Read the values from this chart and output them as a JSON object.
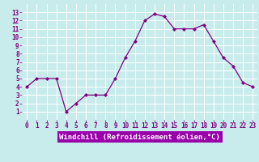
{
  "x": [
    0,
    1,
    2,
    3,
    4,
    5,
    6,
    7,
    8,
    9,
    10,
    11,
    12,
    13,
    14,
    15,
    16,
    17,
    18,
    19,
    20,
    21,
    22,
    23
  ],
  "y": [
    4,
    5,
    5,
    5,
    1,
    2,
    3,
    3,
    3,
    5,
    7.5,
    9.5,
    12,
    12.8,
    12.5,
    11,
    11,
    11,
    11.5,
    9.5,
    7.5,
    6.5,
    4.5,
    4
  ],
  "line_color": "#800080",
  "marker_color": "#800080",
  "bg_color": "#c8ecec",
  "grid_color": "#ffffff",
  "xlabel": "Windchill (Refroidissement éolien,°C)",
  "xlim": [
    -0.5,
    23.5
  ],
  "ylim": [
    0,
    14
  ],
  "yticks": [
    1,
    2,
    3,
    4,
    5,
    6,
    7,
    8,
    9,
    10,
    11,
    12,
    13
  ],
  "xticks": [
    0,
    1,
    2,
    3,
    4,
    5,
    6,
    7,
    8,
    9,
    10,
    11,
    12,
    13,
    14,
    15,
    16,
    17,
    18,
    19,
    20,
    21,
    22,
    23
  ],
  "font_color": "#800080",
  "label_fontsize": 6.5,
  "tick_fontsize": 5.5,
  "xlabel_bg": "#9900aa",
  "xlabel_fg": "#ffffff"
}
